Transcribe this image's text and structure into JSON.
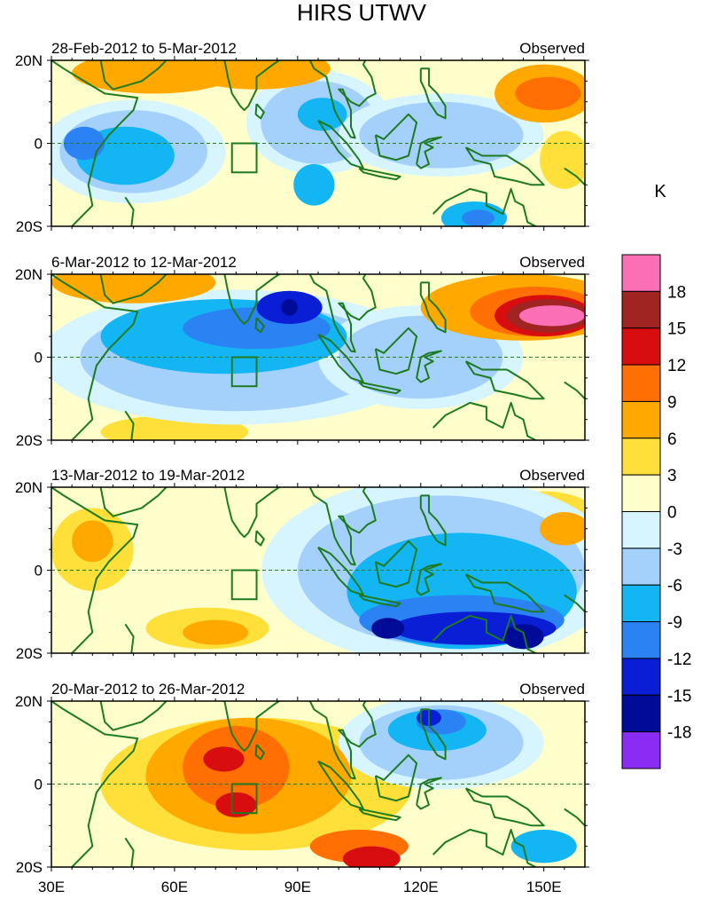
{
  "chart_data": {
    "type": "heatmap",
    "title": "HIRS UTWV",
    "units": "K",
    "colorbar": {
      "levels": [
        "18",
        "15",
        "12",
        "9",
        "6",
        "3",
        "0",
        "-3",
        "-6",
        "-9",
        "-12",
        "-15",
        "-18"
      ],
      "colors": [
        "#fb6fb6",
        "#a02422",
        "#d70d10",
        "#ff6f04",
        "#ffa800",
        "#ffdf3a",
        "#ffffcc",
        "#d7f5ff",
        "#a4d1fc",
        "#13b6f2",
        "#2b82f2",
        "#0a1ed6",
        "#000b97",
        "#8a2cf3"
      ]
    },
    "x_ticks": [
      "30E",
      "60E",
      "90E",
      "120E",
      "150E"
    ],
    "x_tick_values": [
      30,
      60,
      90,
      120,
      150
    ],
    "xlim": [
      30,
      160
    ],
    "y_ticks": [
      "20N",
      "0",
      "20S"
    ],
    "y_tick_values": [
      20,
      0,
      -20
    ],
    "ylim": [
      -20,
      20
    ],
    "box_region": {
      "lon": [
        74,
        80
      ],
      "lat": [
        -7,
        0
      ]
    },
    "panels": [
      {
        "period": "28-Feb-2012 to 5-Mar-2012",
        "label": "Observed",
        "anomalies": [
          {
            "lon": 55,
            "lat": 17,
            "rx": 20,
            "ry": 5,
            "level": 6
          },
          {
            "lon": 80,
            "lat": 18,
            "rx": 18,
            "ry": 5,
            "level": 6
          },
          {
            "lon": 150,
            "lat": 12,
            "rx": 12,
            "ry": 7,
            "level": 6
          },
          {
            "lon": 151,
            "lat": 12,
            "rx": 8,
            "ry": 4,
            "level": 9
          },
          {
            "lon": 155,
            "lat": -4,
            "rx": 6,
            "ry": 7,
            "level": 3
          },
          {
            "lon": 50,
            "lat": -2,
            "rx": 18,
            "ry": 10,
            "level": -3
          },
          {
            "lon": 95,
            "lat": 5,
            "rx": 14,
            "ry": 10,
            "level": -3
          },
          {
            "lon": 125,
            "lat": 2,
            "rx": 20,
            "ry": 8,
            "level": -3
          },
          {
            "lon": 48,
            "lat": -3,
            "rx": 12,
            "ry": 7,
            "level": -6
          },
          {
            "lon": 96,
            "lat": 7,
            "rx": 6,
            "ry": 4,
            "level": -6
          },
          {
            "lon": 94,
            "lat": -10,
            "rx": 5,
            "ry": 5,
            "level": -6
          },
          {
            "lon": 133,
            "lat": -18,
            "rx": 8,
            "ry": 4,
            "level": -6
          },
          {
            "lon": 38,
            "lat": 0,
            "rx": 5,
            "ry": 4,
            "level": -9
          },
          {
            "lon": 134,
            "lat": -18,
            "rx": 4,
            "ry": 2,
            "level": -9
          }
        ]
      },
      {
        "period": "6-Mar-2012 to 12-Mar-2012",
        "label": "Observed",
        "anomalies": [
          {
            "lon": 50,
            "lat": 18,
            "rx": 20,
            "ry": 5,
            "level": 6
          },
          {
            "lon": 145,
            "lat": 12,
            "rx": 25,
            "ry": 8,
            "level": 6
          },
          {
            "lon": 148,
            "lat": 11,
            "rx": 16,
            "ry": 6,
            "level": 9
          },
          {
            "lon": 150,
            "lat": 10,
            "rx": 12,
            "ry": 5,
            "level": 12
          },
          {
            "lon": 151,
            "lat": 10,
            "rx": 10,
            "ry": 4,
            "level": 15
          },
          {
            "lon": 152,
            "lat": 10,
            "rx": 8,
            "ry": 2.5,
            "level": 18
          },
          {
            "lon": 60,
            "lat": -18,
            "rx": 18,
            "ry": 4,
            "level": 3
          },
          {
            "lon": 75,
            "lat": 0,
            "rx": 38,
            "ry": 13,
            "level": -3
          },
          {
            "lon": 120,
            "lat": 0,
            "rx": 20,
            "ry": 10,
            "level": -3
          },
          {
            "lon": 72,
            "lat": 5,
            "rx": 30,
            "ry": 9,
            "level": -6
          },
          {
            "lon": 80,
            "lat": 7,
            "rx": 18,
            "ry": 5,
            "level": -9
          },
          {
            "lon": 88,
            "lat": 12,
            "rx": 8,
            "ry": 4,
            "level": -12
          },
          {
            "lon": 88,
            "lat": 12,
            "rx": 2,
            "ry": 2,
            "level": -15
          }
        ]
      },
      {
        "period": "13-Mar-2012 to 19-Mar-2012",
        "label": "Observed",
        "anomalies": [
          {
            "lon": 40,
            "lat": 5,
            "rx": 10,
            "ry": 10,
            "level": 3
          },
          {
            "lon": 68,
            "lat": -14,
            "rx": 15,
            "ry": 5,
            "level": 3
          },
          {
            "lon": 150,
            "lat": 14,
            "rx": 12,
            "ry": 5,
            "level": 3
          },
          {
            "lon": 40,
            "lat": 7,
            "rx": 5,
            "ry": 5,
            "level": 6
          },
          {
            "lon": 70,
            "lat": -15,
            "rx": 8,
            "ry": 3,
            "level": 6
          },
          {
            "lon": 155,
            "lat": 10,
            "rx": 6,
            "ry": 4,
            "level": 6
          },
          {
            "lon": 125,
            "lat": 0,
            "rx": 35,
            "ry": 18,
            "level": -3
          },
          {
            "lon": 130,
            "lat": -5,
            "rx": 28,
            "ry": 14,
            "level": -6
          },
          {
            "lon": 130,
            "lat": -12,
            "rx": 25,
            "ry": 6,
            "level": -9
          },
          {
            "lon": 133,
            "lat": -14,
            "rx": 20,
            "ry": 4,
            "level": -12
          },
          {
            "lon": 112,
            "lat": -14,
            "rx": 4,
            "ry": 2.5,
            "level": -15
          },
          {
            "lon": 145,
            "lat": -16,
            "rx": 5,
            "ry": 3,
            "level": -15
          }
        ]
      },
      {
        "period": "20-Mar-2012 to 26-Mar-2012",
        "label": "Observed",
        "anomalies": [
          {
            "lon": 80,
            "lat": 0,
            "rx": 38,
            "ry": 16,
            "level": 3
          },
          {
            "lon": 78,
            "lat": 2,
            "rx": 25,
            "ry": 14,
            "level": 6
          },
          {
            "lon": 75,
            "lat": 4,
            "rx": 13,
            "ry": 10,
            "level": 9
          },
          {
            "lon": 105,
            "lat": -15,
            "rx": 12,
            "ry": 4,
            "level": 9
          },
          {
            "lon": 72,
            "lat": 6,
            "rx": 5,
            "ry": 3,
            "level": 12
          },
          {
            "lon": 75,
            "lat": -5,
            "rx": 5,
            "ry": 3,
            "level": 12
          },
          {
            "lon": 108,
            "lat": -18,
            "rx": 7,
            "ry": 3,
            "level": 12
          },
          {
            "lon": 125,
            "lat": 10,
            "rx": 20,
            "ry": 9,
            "level": -3
          },
          {
            "lon": 124,
            "lat": 13,
            "rx": 12,
            "ry": 5,
            "level": -6
          },
          {
            "lon": 125,
            "lat": 15,
            "rx": 6,
            "ry": 3,
            "level": -9
          },
          {
            "lon": 122,
            "lat": 16,
            "rx": 3,
            "ry": 2,
            "level": -12
          },
          {
            "lon": 150,
            "lat": -15,
            "rx": 8,
            "ry": 4,
            "level": -6
          }
        ]
      }
    ]
  }
}
